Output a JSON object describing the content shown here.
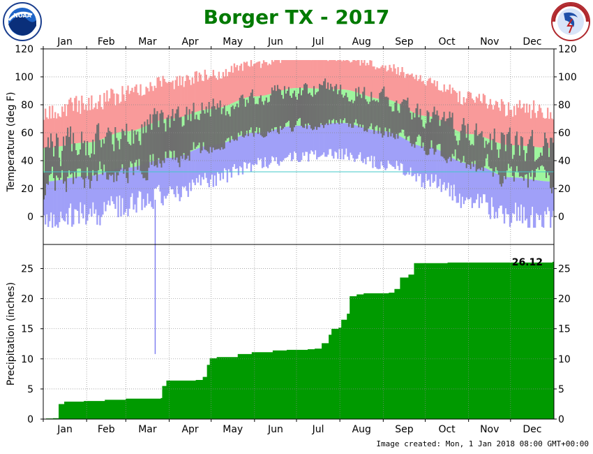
{
  "title": "Borger TX - 2017",
  "footer": "Image created: Mon, 1 Jan 2018 08:00 GMT+00:00",
  "logos": {
    "left": "NOAA",
    "right": "NATIONAL WEATHER SERVICE"
  },
  "colors": {
    "title": "#007a00",
    "record_range": "#f99a9a",
    "normal_range": "#9ef59e",
    "record_low": "#a0a0f8",
    "observed": "#6e6e6e",
    "precip_fill": "#009a00",
    "freezing_line": "#40c8c8"
  },
  "months": [
    "Jan",
    "Feb",
    "Mar",
    "Apr",
    "May",
    "Jun",
    "Jul",
    "Aug",
    "Sep",
    "Oct",
    "Nov",
    "Dec"
  ],
  "chart_data": [
    {
      "type": "area",
      "name": "temperature",
      "ylabel": "Temperature (deg F)",
      "ylim": [
        -20,
        120
      ],
      "yticks": [
        0,
        20,
        40,
        60,
        80,
        100,
        120
      ],
      "xlim": [
        1,
        365
      ],
      "normal_low_anchors": [
        [
          1,
          25
        ],
        [
          32,
          29
        ],
        [
          60,
          35
        ],
        [
          91,
          42
        ],
        [
          121,
          51
        ],
        [
          152,
          60
        ],
        [
          182,
          65
        ],
        [
          213,
          67
        ],
        [
          244,
          61
        ],
        [
          274,
          50
        ],
        [
          305,
          38
        ],
        [
          335,
          28
        ],
        [
          365,
          25
        ]
      ],
      "normal_high_anchors": [
        [
          1,
          49
        ],
        [
          32,
          53
        ],
        [
          60,
          61
        ],
        [
          91,
          70
        ],
        [
          121,
          77
        ],
        [
          152,
          86
        ],
        [
          182,
          92
        ],
        [
          213,
          91
        ],
        [
          244,
          84
        ],
        [
          274,
          72
        ],
        [
          305,
          59
        ],
        [
          335,
          51
        ],
        [
          365,
          49
        ]
      ],
      "record_low_approx": "roughly 25 below normal low, as low as -8 in winter",
      "record_high_approx": "roughly 20 to 30 above normal high, up to 112",
      "observed_daily_range": "daily observed high/low bars in gray, highs 30 to 105, lows 10 to 75",
      "freezing_line": 32
    },
    {
      "type": "area",
      "name": "precipitation",
      "ylabel": "Precipitation (inches)",
      "ylim": [
        0,
        29
      ],
      "yticks": [
        0,
        5,
        10,
        15,
        20,
        25
      ],
      "annual_total_label": "26.12",
      "cumulative_steps": [
        [
          1,
          0
        ],
        [
          3,
          0.1
        ],
        [
          8,
          0.15
        ],
        [
          12,
          2.5
        ],
        [
          16,
          2.9
        ],
        [
          30,
          3.0
        ],
        [
          45,
          3.2
        ],
        [
          60,
          3.4
        ],
        [
          85,
          3.5
        ],
        [
          86,
          5.5
        ],
        [
          89,
          6.4
        ],
        [
          110,
          6.5
        ],
        [
          115,
          7.0
        ],
        [
          118,
          9.0
        ],
        [
          120,
          10.1
        ],
        [
          125,
          10.3
        ],
        [
          140,
          10.8
        ],
        [
          150,
          11.1
        ],
        [
          165,
          11.4
        ],
        [
          175,
          11.5
        ],
        [
          190,
          11.6
        ],
        [
          195,
          11.7
        ],
        [
          200,
          12.6
        ],
        [
          205,
          14.0
        ],
        [
          207,
          15.0
        ],
        [
          212,
          15.2
        ],
        [
          214,
          16.5
        ],
        [
          218,
          17.5
        ],
        [
          220,
          20.4
        ],
        [
          225,
          20.7
        ],
        [
          230,
          20.9
        ],
        [
          248,
          21.0
        ],
        [
          252,
          21.6
        ],
        [
          256,
          23.5
        ],
        [
          262,
          24.0
        ],
        [
          266,
          25.9
        ],
        [
          290,
          26.0
        ],
        [
          365,
          26.12
        ]
      ],
      "marker": {
        "x": 81,
        "y_top_temp": 12,
        "y_bottom_precip": 10.8
      }
    }
  ]
}
